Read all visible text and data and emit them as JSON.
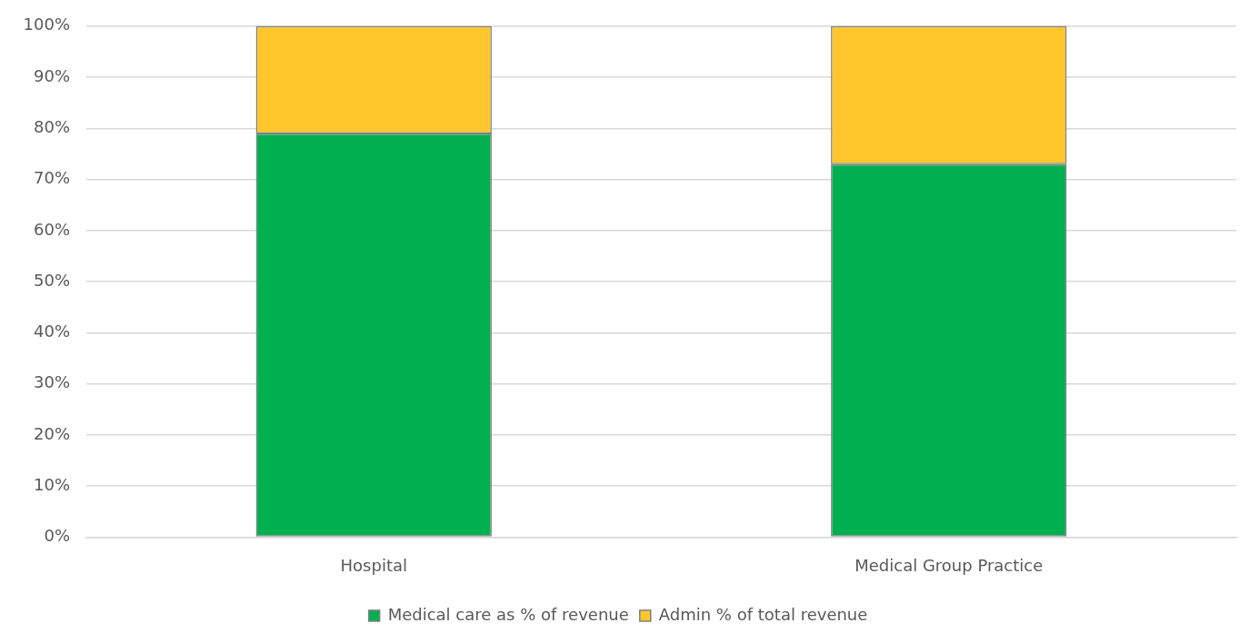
{
  "chart_data": {
    "type": "bar",
    "stacked": true,
    "categories": [
      "Hospital",
      "Medical Group Practice"
    ],
    "series": [
      {
        "name": "Medical care as % of revenue",
        "color": "#00b050",
        "values": [
          79,
          73
        ]
      },
      {
        "name": "Admin % of total revenue",
        "color": "#ffc72c",
        "values": [
          21,
          27
        ]
      }
    ],
    "ylim": [
      0,
      100
    ],
    "yticks": [
      {
        "value": 0,
        "label": "0%"
      },
      {
        "value": 10,
        "label": "10%"
      },
      {
        "value": 20,
        "label": "20%"
      },
      {
        "value": 30,
        "label": "30%"
      },
      {
        "value": 40,
        "label": "40%"
      },
      {
        "value": 50,
        "label": "50%"
      },
      {
        "value": 60,
        "label": "60%"
      },
      {
        "value": 70,
        "label": "70%"
      },
      {
        "value": 80,
        "label": "80%"
      },
      {
        "value": 90,
        "label": "90%"
      },
      {
        "value": 100,
        "label": "100%"
      }
    ],
    "grid": "y",
    "legend": "bottom"
  }
}
